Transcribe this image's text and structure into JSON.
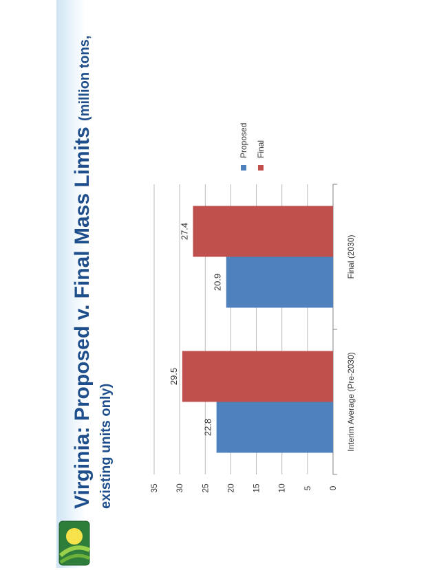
{
  "title": {
    "main": "Virginia:  Proposed v. Final Mass Limits",
    "unit_note": "(million tons,",
    "line2": "existing units only)"
  },
  "colors": {
    "title": "#1f4e8c",
    "proposed": "#4f81bd",
    "final": "#c0504d"
  },
  "chart_data": {
    "type": "bar",
    "orientation": "vertical",
    "categories": [
      "Interim Average (Pre-2030)",
      "Final (2030)"
    ],
    "series": [
      {
        "name": "Proposed",
        "values": [
          22.8,
          20.9
        ],
        "color": "#4f81bd"
      },
      {
        "name": "Final",
        "values": [
          29.5,
          27.4
        ],
        "color": "#c0504d"
      }
    ],
    "data_labels": [
      [
        "22.8",
        "20.9"
      ],
      [
        "29.5",
        "27.4"
      ]
    ],
    "ylim": [
      0,
      35
    ],
    "yticks": [
      0,
      5,
      10,
      15,
      20,
      25,
      30,
      35
    ],
    "ytick_labels": [
      "0",
      "5",
      "10",
      "15",
      "20",
      "25",
      "30",
      "35"
    ],
    "grid": true,
    "legend": "right"
  }
}
